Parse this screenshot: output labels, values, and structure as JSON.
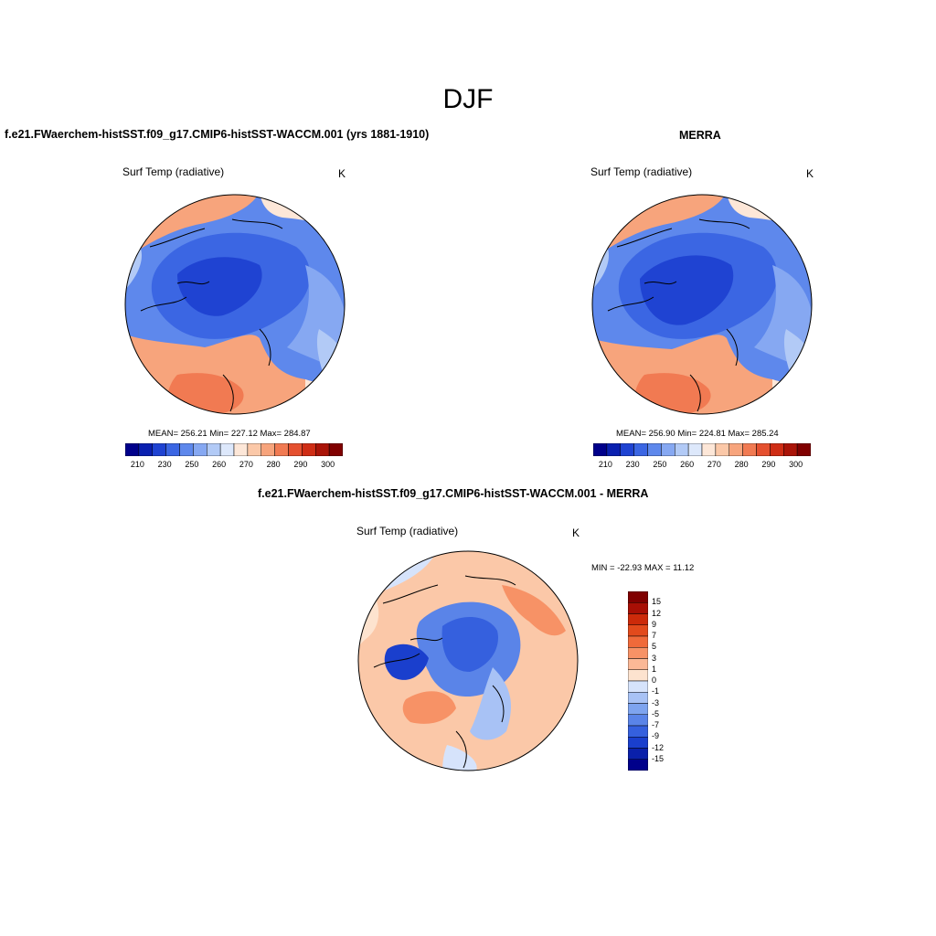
{
  "figure": {
    "season_title": "DJF",
    "left": {
      "title": "f.e21.FWaerchem-histSST.f09_g17.CMIP6-histSST-WACCM.001 (yrs 1881-1910)",
      "variable": "Surf Temp (radiative)",
      "units": "K",
      "stats": "MEAN= 256.21  Min= 227.12  Max= 284.87"
    },
    "right": {
      "title": "MERRA",
      "variable": "Surf Temp (radiative)",
      "units": "K",
      "stats": "MEAN= 256.90  Min= 224.81  Max= 285.24"
    },
    "diff": {
      "title": "f.e21.FWaerchem-histSST.f09_g17.CMIP6-histSST-WACCM.001 - MERRA",
      "variable": "Surf Temp (radiative)",
      "units": "K",
      "stats": "MIN = -22.93 MAX =  11.12"
    }
  },
  "colorbars": {
    "absolute": {
      "colors": [
        "#00008b",
        "#0a20b0",
        "#1f43d2",
        "#3b66e3",
        "#5e88ec",
        "#86a8f2",
        "#b2caf6",
        "#dde8fb",
        "#fde7d8",
        "#fbc8a8",
        "#f7a47c",
        "#f17a52",
        "#e5502f",
        "#cf2d15",
        "#aa1408",
        "#800000"
      ],
      "tick_labels": [
        "210",
        "230",
        "250",
        "260",
        "270",
        "280",
        "290",
        "300"
      ]
    },
    "difference": {
      "colors_top_to_bottom": [
        "#800000",
        "#a80f05",
        "#cc2a0a",
        "#e24a1c",
        "#f06a3a",
        "#f79266",
        "#fbb896",
        "#fde3cf",
        "#d6e3fb",
        "#a8c2f5",
        "#7ea4ef",
        "#5a84e8",
        "#3560de",
        "#1a3fcd",
        "#0a20aa",
        "#00008b"
      ],
      "tick_labels": [
        "15",
        "12",
        "9",
        "7",
        "5",
        "3",
        "1",
        "0",
        "-1",
        "-3",
        "-5",
        "-7",
        "-9",
        "-12",
        "-15"
      ]
    }
  },
  "map_colors": {
    "deep_blue": "#1f43d2",
    "mid_blue": "#3b66e3",
    "light_blue": "#86a8f2",
    "pale_blue": "#b2caf6",
    "pale_orange": "#fde7d8",
    "orange": "#f7a47c",
    "red_orange": "#f17a52",
    "diff_pale_orange": "#fbc8a8",
    "diff_orange": "#f79266"
  }
}
